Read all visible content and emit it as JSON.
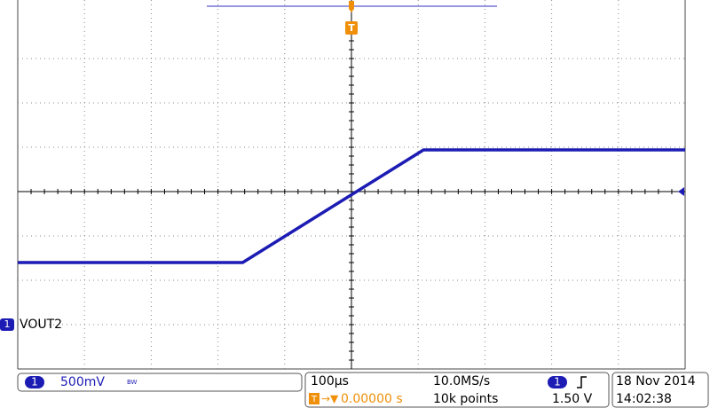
{
  "chart_data": {
    "type": "line",
    "x": [
      -500,
      -163,
      108,
      500
    ],
    "series": [
      {
        "name": "VOUT2",
        "color": "#1c1cb4",
        "values": [
          0.7,
          0.7,
          1.97,
          1.97
        ]
      }
    ],
    "xlim": [
      -500,
      500
    ],
    "ylim": [
      -0.5,
      3.5
    ],
    "grid": true,
    "trigger_marker": "T",
    "channel": "1"
  },
  "status": {
    "volts_per_div": "500mV",
    "bandwidth": "BW",
    "time_per_div": "100µs",
    "trigger_position": "0.00000 s",
    "sample_rate": "10.0MS/s",
    "record_length": "10k points",
    "trigger_channel": "1",
    "trigger_level": "1.50 V",
    "date": "18 Nov 2014",
    "time": "14:02:38"
  }
}
